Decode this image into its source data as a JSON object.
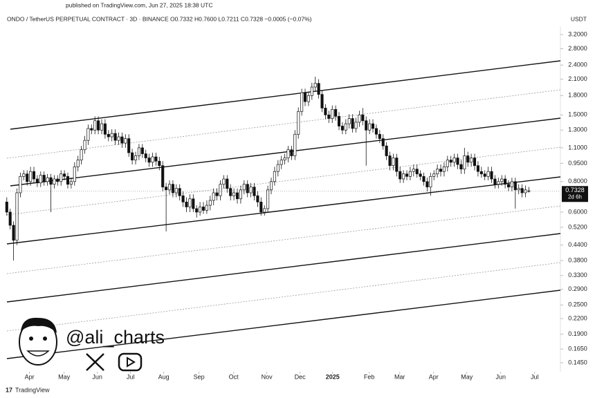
{
  "published": "published on TradingView.com, Jun 27, 2025 18:38 UTC",
  "watermark": "@ali_charts",
  "logo": "TradingView",
  "chart_data": {
    "type": "candlestick",
    "title": "ONDO / TetherUS PERPETUAL CONTRACT · 3D · BINANCE  O0.7332  H0.7600  L0.7211  C0.7328  −0.0005 (−0.07%)",
    "y_unit": "USDT",
    "countdown": "2d 6h",
    "log_scale": true,
    "up_color": "#ffffff",
    "down_color": "#111111",
    "ylim": [
      0.1315,
      3.645
    ],
    "yticks": [
      {
        "value": 3.2,
        "label": "3.2000"
      },
      {
        "value": 2.8,
        "label": "2.8000"
      },
      {
        "value": 2.4,
        "label": "2.4000"
      },
      {
        "value": 2.1,
        "label": "2.1000"
      },
      {
        "value": 1.8,
        "label": "1.8000"
      },
      {
        "value": 1.5,
        "label": "1.5000"
      },
      {
        "value": 1.3,
        "label": "1.3000"
      },
      {
        "value": 1.1,
        "label": "1.1000"
      },
      {
        "value": 0.95,
        "label": "0.9500"
      },
      {
        "value": 0.8,
        "label": "0.8000"
      },
      {
        "value": 0.6,
        "label": "0.6000"
      },
      {
        "value": 0.52,
        "label": "0.5200"
      },
      {
        "value": 0.44,
        "label": "0.4400"
      },
      {
        "value": 0.38,
        "label": "0.3800"
      },
      {
        "value": 0.33,
        "label": "0.3300"
      },
      {
        "value": 0.29,
        "label": "0.2900"
      },
      {
        "value": 0.25,
        "label": "0.2500"
      },
      {
        "value": 0.22,
        "label": "0.2200"
      },
      {
        "value": 0.19,
        "label": "0.1900"
      },
      {
        "value": 0.165,
        "label": "0.1650"
      },
      {
        "value": 0.145,
        "label": "0.1450"
      }
    ],
    "xlim": [
      -2,
      163.3
    ],
    "xticks": [
      {
        "value": 6.7,
        "label": "Apr"
      },
      {
        "value": 16.9,
        "label": "May"
      },
      {
        "value": 26.7,
        "label": "Jun"
      },
      {
        "value": 36.5,
        "label": "Jul"
      },
      {
        "value": 46.3,
        "label": "Aug"
      },
      {
        "value": 56.7,
        "label": "Sep"
      },
      {
        "value": 66.9,
        "label": "Oct"
      },
      {
        "value": 76.7,
        "label": "Nov"
      },
      {
        "value": 86.5,
        "label": "Dec"
      },
      {
        "value": 96.1,
        "label": "2025"
      },
      {
        "value": 106.9,
        "label": "Feb"
      },
      {
        "value": 115.9,
        "label": "Mar"
      },
      {
        "value": 125.9,
        "label": "Apr"
      },
      {
        "value": 135.7,
        "label": "May"
      },
      {
        "value": 145.7,
        "label": "Jun"
      },
      {
        "value": 155.7,
        "label": "Jul"
      }
    ],
    "open": [
      0.66,
      0.6,
      0.53,
      0.46,
      0.72,
      0.84,
      0.86,
      0.8,
      0.88,
      0.82,
      0.79,
      0.85,
      0.8,
      0.83,
      0.78,
      0.82,
      0.8,
      0.86,
      0.84,
      0.78,
      0.8,
      0.92,
      0.98,
      1.08,
      1.18,
      1.32,
      1.3,
      1.42,
      1.3,
      1.38,
      1.25,
      1.22,
      1.26,
      1.18,
      1.22,
      1.15,
      1.2,
      1.05,
      0.98,
      1.02,
      1.1,
      1.04,
      1.0,
      0.96,
      1.01,
      0.97,
      0.93,
      0.76,
      0.74,
      0.78,
      0.72,
      0.75,
      0.7,
      0.66,
      0.63,
      0.68,
      0.62,
      0.6,
      0.63,
      0.61,
      0.64,
      0.67,
      0.72,
      0.7,
      0.78,
      0.82,
      0.75,
      0.7,
      0.72,
      0.68,
      0.74,
      0.78,
      0.72,
      0.76,
      0.7,
      0.66,
      0.6,
      0.62,
      0.74,
      0.8,
      0.88,
      0.94,
      0.98,
      1.0,
      1.08,
      1.02,
      1.25,
      1.55,
      1.85,
      1.7,
      1.8,
      1.95,
      2.02,
      1.82,
      1.6,
      1.5,
      1.45,
      1.58,
      1.48,
      1.35,
      1.3,
      1.38,
      1.45,
      1.32,
      1.4,
      1.5,
      1.42,
      1.3,
      1.38,
      1.32,
      1.25,
      1.2,
      1.12,
      1.02,
      0.93,
      1.0,
      0.88,
      0.82,
      0.86,
      0.84,
      0.88,
      0.9,
      0.86,
      0.84,
      0.8,
      0.76,
      0.84,
      0.86,
      0.9,
      0.88,
      0.92,
      0.98,
      0.96,
      1.0,
      0.94,
      0.9,
      1.02,
      0.96,
      1.0,
      0.93,
      0.88,
      0.86,
      0.84,
      0.88,
      0.82,
      0.78,
      0.8,
      0.82,
      0.78,
      0.76,
      0.8,
      0.74,
      0.75,
      0.72,
      0.7332
    ],
    "high": [
      0.69,
      0.62,
      0.55,
      0.75,
      0.87,
      0.89,
      0.89,
      0.92,
      0.92,
      0.85,
      0.88,
      0.88,
      0.86,
      0.86,
      0.85,
      0.85,
      0.89,
      0.89,
      0.87,
      0.83,
      0.96,
      1.02,
      1.12,
      1.23,
      1.37,
      1.37,
      1.48,
      1.48,
      1.44,
      1.44,
      1.3,
      1.31,
      1.31,
      1.27,
      1.27,
      1.25,
      1.25,
      1.09,
      1.06,
      1.14,
      1.14,
      1.08,
      1.04,
      1.05,
      1.05,
      1.01,
      0.97,
      0.79,
      0.81,
      0.81,
      0.78,
      0.78,
      0.73,
      0.69,
      0.71,
      0.71,
      0.64,
      0.66,
      0.66,
      0.67,
      0.7,
      0.75,
      0.75,
      0.81,
      0.85,
      0.85,
      0.78,
      0.75,
      0.75,
      0.77,
      0.81,
      0.81,
      0.79,
      0.79,
      0.73,
      0.69,
      0.64,
      0.77,
      0.83,
      0.92,
      0.98,
      1.02,
      1.04,
      1.12,
      1.12,
      1.3,
      1.61,
      1.92,
      1.92,
      1.87,
      2.03,
      2.15,
      2.1,
      1.89,
      1.66,
      1.56,
      1.64,
      1.64,
      1.54,
      1.4,
      1.44,
      1.51,
      1.51,
      1.46,
      1.56,
      1.6,
      1.48,
      1.44,
      1.44,
      1.37,
      1.3,
      1.25,
      1.16,
      1.06,
      1.04,
      1.04,
      0.92,
      0.89,
      0.89,
      0.92,
      0.94,
      0.94,
      0.89,
      0.87,
      0.83,
      0.87,
      0.89,
      0.94,
      0.94,
      0.96,
      1.02,
      1.02,
      1.04,
      1.04,
      0.98,
      1.1,
      1.06,
      1.04,
      1.04,
      0.97,
      0.92,
      0.89,
      0.92,
      0.92,
      0.85,
      0.83,
      0.85,
      0.85,
      0.81,
      0.83,
      0.83,
      0.78,
      0.78,
      0.77,
      0.76
    ],
    "low": [
      0.58,
      0.51,
      0.38,
      0.44,
      0.69,
      0.81,
      0.77,
      0.77,
      0.79,
      0.76,
      0.76,
      0.77,
      0.77,
      0.6,
      0.75,
      0.77,
      0.77,
      0.81,
      0.75,
      0.75,
      0.77,
      0.88,
      0.94,
      1.04,
      1.13,
      1.25,
      1.25,
      1.25,
      1.25,
      1.2,
      1.17,
      1.17,
      1.13,
      1.13,
      1.1,
      1.1,
      1.01,
      0.94,
      0.94,
      0.98,
      1.0,
      0.96,
      0.92,
      0.92,
      0.93,
      0.89,
      0.73,
      0.5,
      0.71,
      0.69,
      0.69,
      0.67,
      0.63,
      0.6,
      0.6,
      0.6,
      0.57,
      0.58,
      0.59,
      0.59,
      0.61,
      0.64,
      0.67,
      0.67,
      0.75,
      0.72,
      0.67,
      0.67,
      0.65,
      0.65,
      0.71,
      0.69,
      0.69,
      0.67,
      0.63,
      0.58,
      0.58,
      0.6,
      0.71,
      0.77,
      0.84,
      0.9,
      0.94,
      0.96,
      0.98,
      0.98,
      1.2,
      1.49,
      1.63,
      1.63,
      1.73,
      1.87,
      1.75,
      1.54,
      1.44,
      1.39,
      1.39,
      1.42,
      1.3,
      1.25,
      1.25,
      1.32,
      1.27,
      1.27,
      1.34,
      1.36,
      0.93,
      1.25,
      1.27,
      1.2,
      1.15,
      1.08,
      0.98,
      0.89,
      0.89,
      0.84,
      0.79,
      0.79,
      0.81,
      0.81,
      0.84,
      0.83,
      0.81,
      0.77,
      0.73,
      0.7,
      0.81,
      0.83,
      0.84,
      0.84,
      0.88,
      0.92,
      0.92,
      0.9,
      0.86,
      0.86,
      0.92,
      0.92,
      0.89,
      0.84,
      0.83,
      0.81,
      0.81,
      0.79,
      0.75,
      0.75,
      0.77,
      0.75,
      0.73,
      0.73,
      0.62,
      0.71,
      0.69,
      0.69,
      0.7211
    ],
    "close": [
      0.6,
      0.53,
      0.46,
      0.72,
      0.84,
      0.86,
      0.8,
      0.88,
      0.82,
      0.79,
      0.85,
      0.8,
      0.83,
      0.78,
      0.82,
      0.8,
      0.86,
      0.84,
      0.78,
      0.8,
      0.92,
      0.98,
      1.08,
      1.18,
      1.32,
      1.3,
      1.42,
      1.3,
      1.38,
      1.25,
      1.22,
      1.26,
      1.18,
      1.22,
      1.15,
      1.2,
      1.05,
      0.98,
      1.02,
      1.1,
      1.04,
      1.0,
      0.96,
      1.01,
      0.97,
      0.93,
      0.76,
      0.74,
      0.78,
      0.72,
      0.75,
      0.7,
      0.66,
      0.63,
      0.68,
      0.62,
      0.6,
      0.63,
      0.61,
      0.64,
      0.67,
      0.72,
      0.7,
      0.78,
      0.82,
      0.75,
      0.7,
      0.72,
      0.68,
      0.74,
      0.78,
      0.72,
      0.76,
      0.7,
      0.66,
      0.6,
      0.62,
      0.74,
      0.8,
      0.88,
      0.94,
      0.98,
      1.0,
      1.08,
      1.02,
      1.25,
      1.55,
      1.85,
      1.7,
      1.8,
      1.95,
      2.02,
      1.82,
      1.6,
      1.5,
      1.45,
      1.58,
      1.48,
      1.35,
      1.3,
      1.38,
      1.45,
      1.32,
      1.4,
      1.5,
      1.42,
      1.3,
      1.38,
      1.32,
      1.25,
      1.2,
      1.12,
      1.02,
      0.93,
      1.0,
      0.88,
      0.82,
      0.86,
      0.84,
      0.88,
      0.9,
      0.86,
      0.84,
      0.8,
      0.76,
      0.84,
      0.86,
      0.9,
      0.88,
      0.92,
      0.98,
      0.96,
      1.0,
      0.94,
      0.9,
      1.02,
      0.96,
      1.0,
      0.93,
      0.88,
      0.86,
      0.84,
      0.88,
      0.82,
      0.78,
      0.8,
      0.82,
      0.78,
      0.76,
      0.8,
      0.74,
      0.75,
      0.72,
      0.74,
      0.7328
    ]
  }
}
